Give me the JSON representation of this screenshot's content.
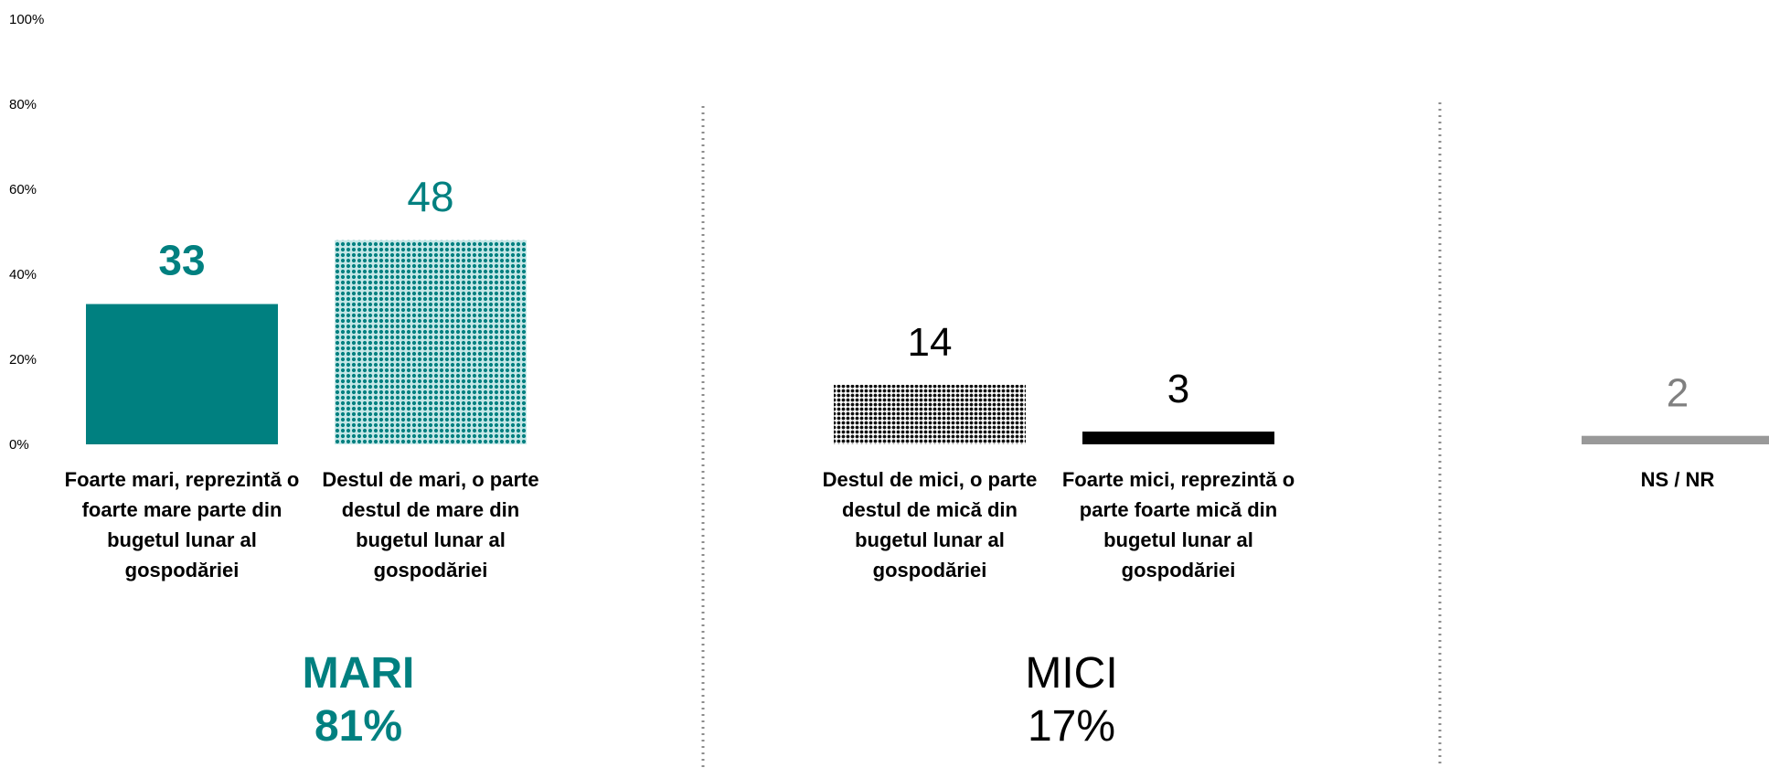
{
  "chart_data": {
    "type": "bar",
    "ylim": [
      0,
      100
    ],
    "yticks": [
      "0%",
      "20%",
      "40%",
      "60%",
      "80%",
      "100%"
    ],
    "grid": false,
    "categories": [
      "Foarte mari, reprezintă o foarte mare parte din bugetul lunar al gospodăriei",
      "Destul de mari, o parte destul de mare din bugetul lunar al gospodăriei",
      "Destul de mici, o parte destul de mică din bugetul lunar al gospodăriei",
      "Foarte mici, reprezintă o parte foarte mică din bugetul lunar al gospodăriei",
      "NS / NR"
    ],
    "values": [
      33,
      48,
      14,
      3,
      2
    ],
    "value_labels": [
      "33",
      "48",
      "14",
      "3",
      "2"
    ],
    "bar_colors": [
      "#008080",
      "#1a9a9a",
      "#222222",
      "#000000",
      "#999999"
    ],
    "bar_patterns": [
      "solid",
      "dotted",
      "dotted",
      "solid",
      "solid"
    ],
    "label_colors": [
      "#008080",
      "#008080",
      "#000000",
      "#000000",
      "#808080"
    ],
    "groups": [
      {
        "name": "MARI",
        "value": "81%",
        "color": "#008080"
      },
      {
        "name": "MICI",
        "value": "17%",
        "color": "#000000"
      }
    ]
  }
}
